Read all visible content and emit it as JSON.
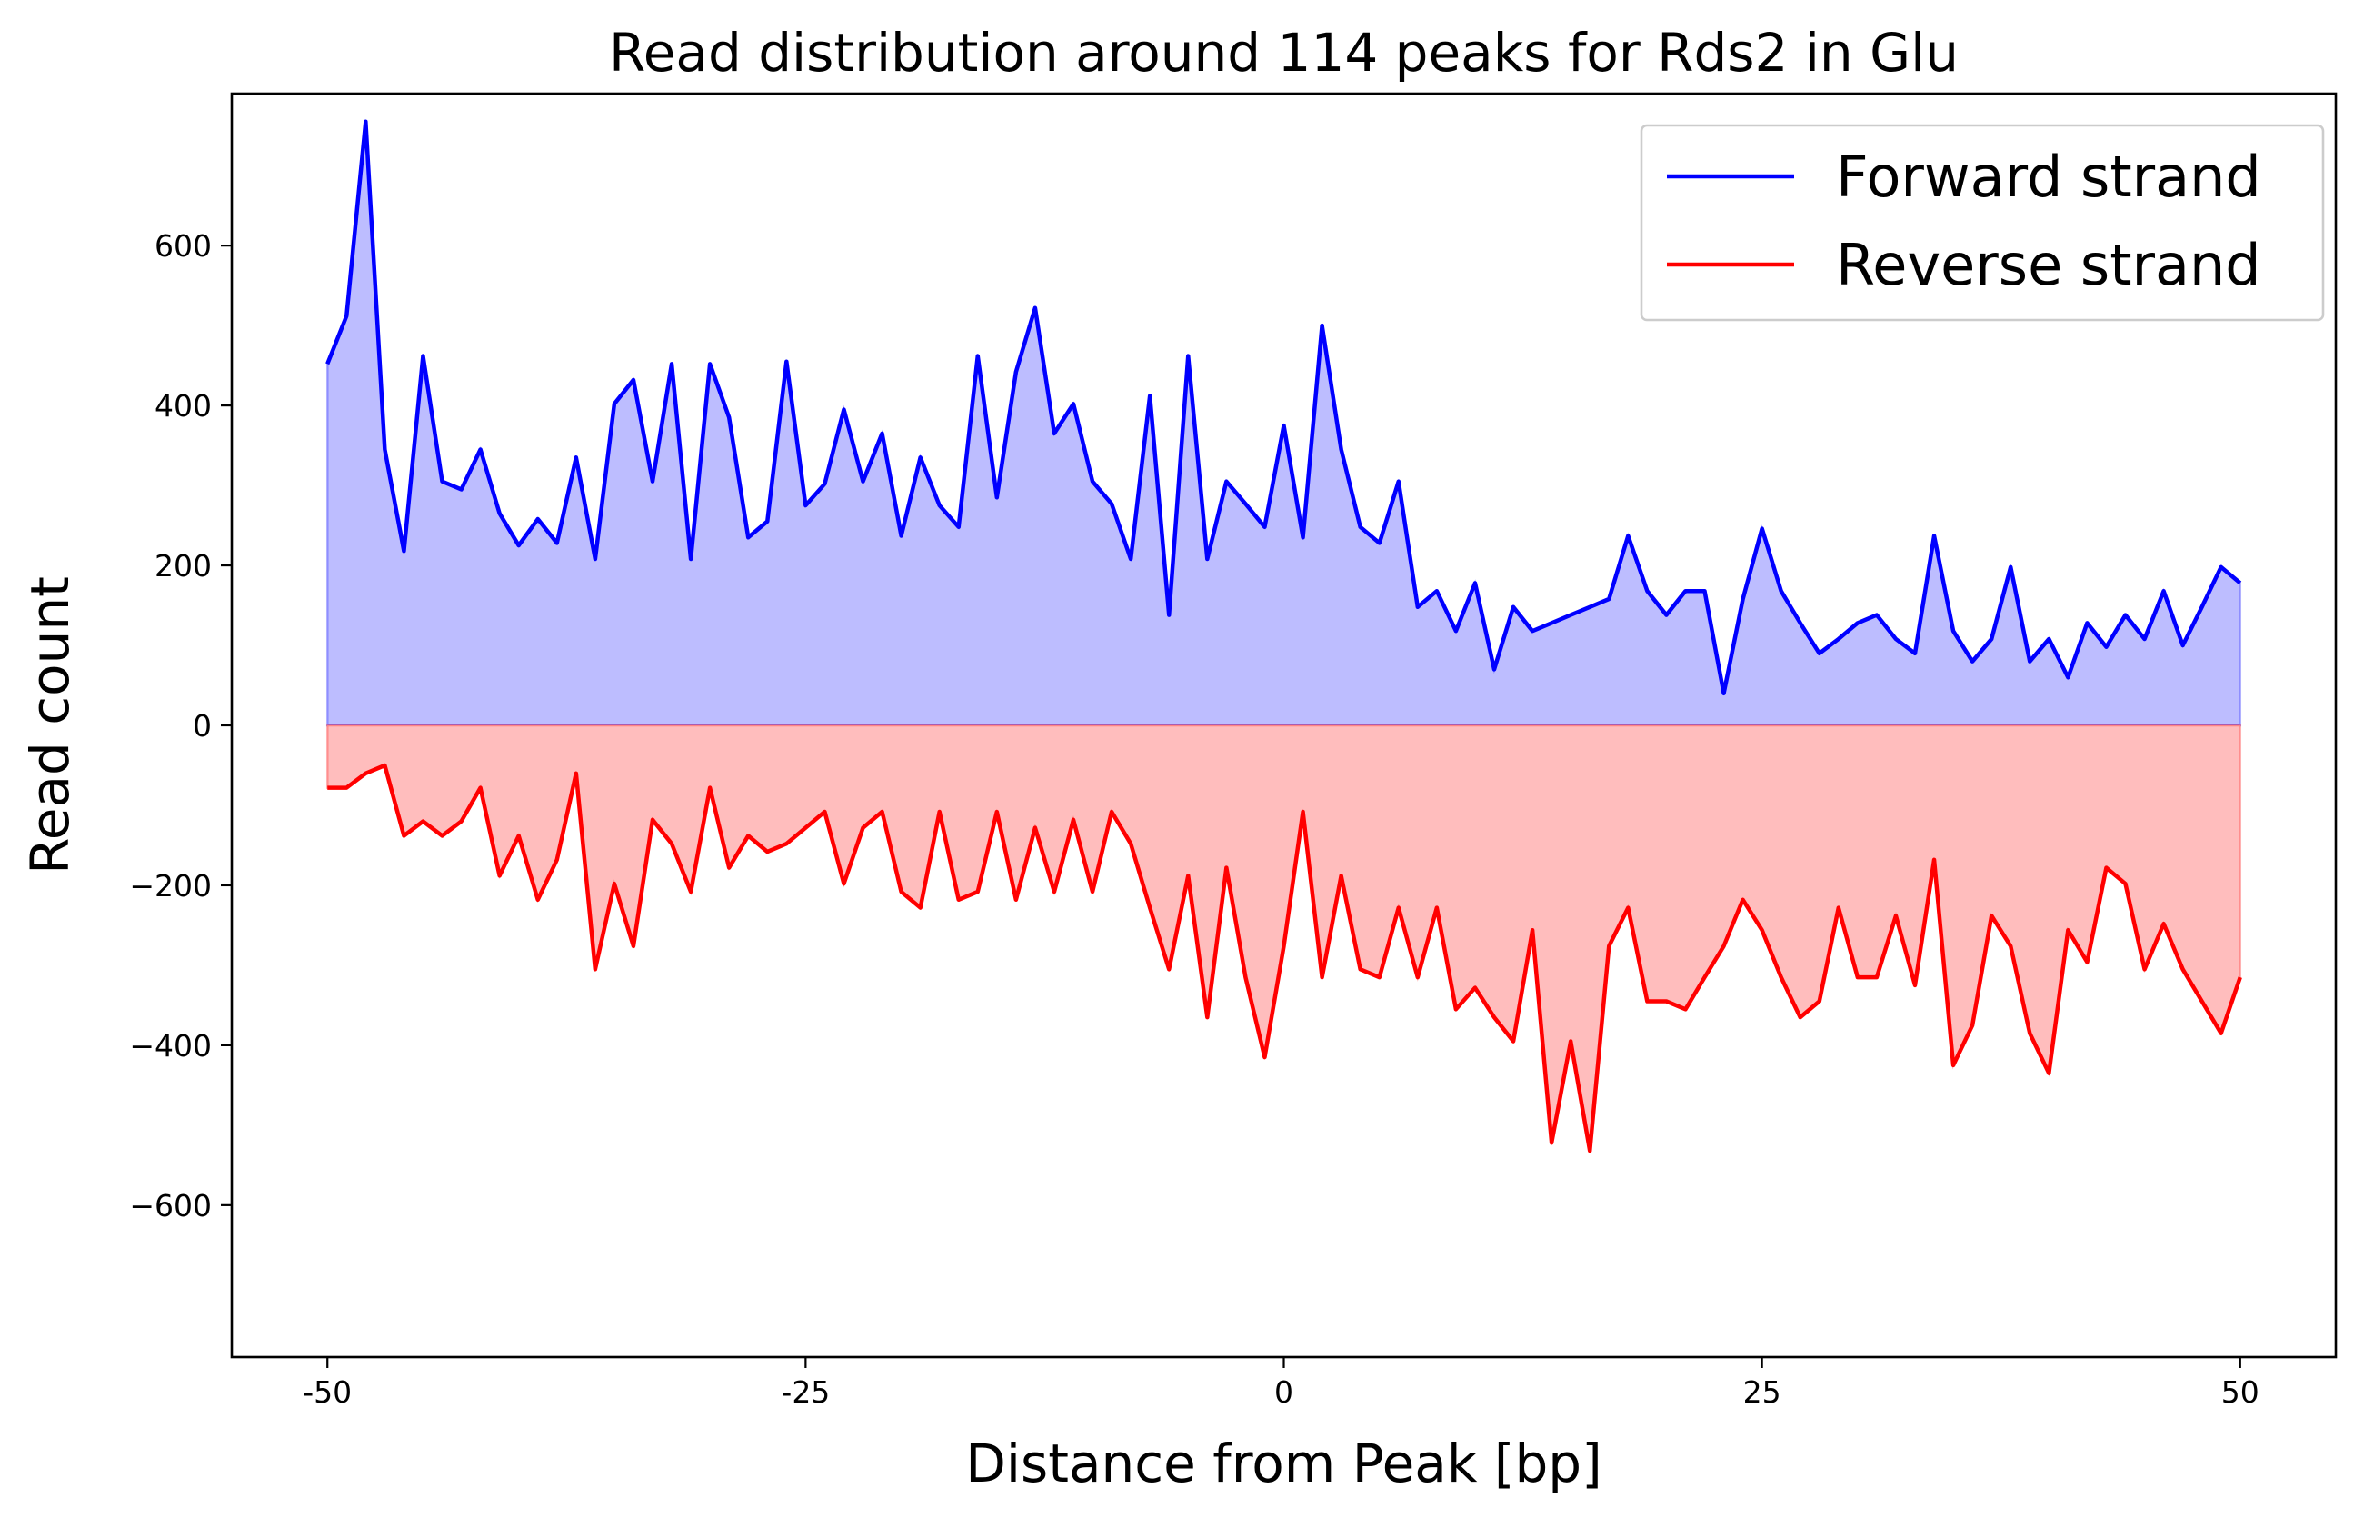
{
  "chart_data": {
    "type": "area",
    "title": "Read distribution around 114 peaks for Rds2 in Glu",
    "xlabel": "Distance from Peak [bp]",
    "ylabel": "Read count",
    "xlim": [
      -55,
      55
    ],
    "ylim": [
      -790,
      790
    ],
    "x_ticks": [
      -50,
      -25,
      0,
      25,
      50
    ],
    "x_tick_labels": [
      "-50",
      "-25",
      "0",
      "25",
      "50"
    ],
    "y_ticks": [
      -600,
      -400,
      -200,
      0,
      200,
      400,
      600
    ],
    "y_tick_labels": [
      "−600",
      "−400",
      "−200",
      "0",
      "200",
      "400",
      "600"
    ],
    "grid": false,
    "legend_position": "top-right",
    "x_start": -50,
    "x_step": 1,
    "series": [
      {
        "name": "Forward strand",
        "color": "#0000ff",
        "fill": "#bdbdff",
        "values": [
          452,
          512,
          755,
          345,
          218,
          462,
          305,
          295,
          345,
          265,
          225,
          258,
          228,
          335,
          208,
          402,
          432,
          305,
          452,
          208,
          452,
          385,
          235,
          255,
          455,
          275,
          302,
          395,
          305,
          365,
          237,
          335,
          275,
          248,
          462,
          285,
          442,
          522,
          365,
          402,
          305,
          277,
          208,
          412,
          138,
          462,
          208,
          305,
          277,
          248,
          375,
          235,
          500,
          345,
          248,
          228,
          305,
          148,
          168,
          118,
          178,
          70,
          148,
          118,
          128,
          138,
          148,
          158,
          237,
          168,
          138,
          168,
          168,
          40,
          158,
          246,
          168,
          128,
          90,
          108,
          128,
          138,
          108,
          90,
          237,
          118,
          80,
          108,
          198,
          80,
          108,
          60,
          128,
          98,
          138,
          108,
          168,
          100,
          148,
          198,
          178
        ]
      },
      {
        "name": "Reverse strand",
        "color": "#ff0000",
        "fill": "#ffbdbd",
        "values": [
          -78,
          -78,
          -60,
          -50,
          -138,
          -120,
          -138,
          -120,
          -78,
          -188,
          -138,
          -218,
          -168,
          -60,
          -305,
          -198,
          -276,
          -118,
          -148,
          -208,
          -78,
          -178,
          -138,
          -158,
          -148,
          -128,
          -108,
          -198,
          -128,
          -108,
          -208,
          -228,
          -108,
          -218,
          -208,
          -108,
          -218,
          -128,
          -208,
          -118,
          -208,
          -108,
          -148,
          -228,
          -305,
          -188,
          -365,
          -178,
          -315,
          -415,
          -276,
          -108,
          -315,
          -188,
          -305,
          -315,
          -228,
          -315,
          -228,
          -355,
          -328,
          -365,
          -395,
          -256,
          -522,
          -395,
          -532,
          -276,
          -228,
          -345,
          -345,
          -355,
          -315,
          -276,
          -218,
          -256,
          -315,
          -365,
          -345,
          -228,
          -315,
          -315,
          -238,
          -325,
          -168,
          -425,
          -375,
          -238,
          -276,
          -385,
          -435,
          -256,
          -296,
          -178,
          -198,
          -305,
          -248,
          -305,
          -345,
          -385,
          -315
        ]
      }
    ]
  }
}
